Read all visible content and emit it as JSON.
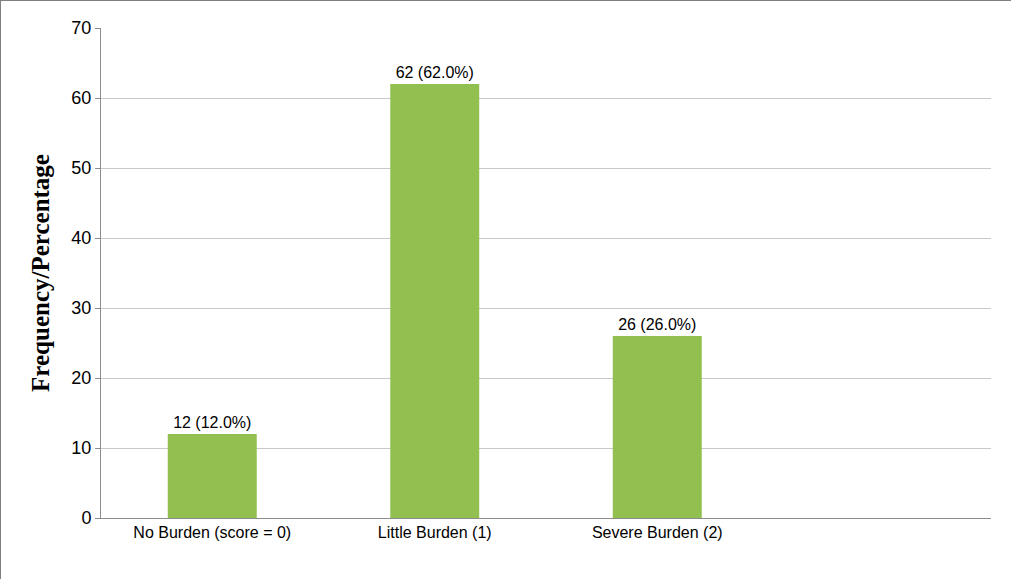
{
  "chart_data": {
    "type": "bar",
    "y_label": "Frequency/Percentage",
    "categories": [
      "No Burden (score = 0)",
      "Little Burden (1)",
      "Severe Burden (2)",
      null
    ],
    "values": [
      12,
      62,
      26,
      null
    ],
    "value_labels": [
      "12 (12.0%)",
      "62 (62.0%)",
      "26 (26.0%)",
      null
    ],
    "data_labels": true,
    "color": "#92c050",
    "ylim": [
      0,
      70
    ],
    "yticks": [
      0,
      10,
      20,
      30,
      40,
      50,
      60,
      70
    ],
    "grid": true
  }
}
